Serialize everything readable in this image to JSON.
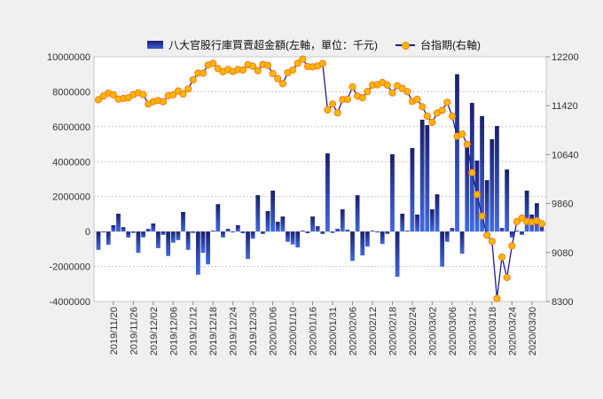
{
  "chart_data": {
    "type": "bar+line",
    "legend": {
      "bar_label": "八大官股行庫買賣超金額(左軸，單位：千元)",
      "line_label": "台指期(右軸)",
      "placement": "top-center"
    },
    "left_axis": {
      "min": -4000000,
      "max": 10000000,
      "step": 2000000,
      "tick_labels": [
        "10000000",
        "8000000",
        "6000000",
        "4000000",
        "2000000",
        "0",
        "-2000000",
        "-4000000"
      ]
    },
    "right_axis": {
      "min": 8300,
      "max": 12200,
      "step": 780,
      "tick_labels": [
        "12200",
        "11420",
        "10640",
        "9860",
        "9080",
        "8300"
      ]
    },
    "x_tick_start_index": 3,
    "x_tick_step": 4,
    "x_tick_labels": [
      "2019/11/20",
      "2019/11/26",
      "2019/12/02",
      "2019/12/06",
      "2019/12/12",
      "2019/12/18",
      "2019/12/24",
      "2019/12/30",
      "2020/01/06",
      "2020/01/10",
      "2020/01/16",
      "2020/01/31",
      "2020/02/06",
      "2020/02/12",
      "2020/02/18",
      "2020/02/24",
      "2020/03/02",
      "2020/03/06",
      "2020/03/12",
      "2020/03/18",
      "2020/03/24",
      "2020/03/30"
    ],
    "grid": true,
    "series": [
      {
        "name": "八大官股行庫買賣超金額",
        "type": "bar",
        "axis": "left",
        "values": [
          -1050000,
          -50000,
          -760000,
          360000,
          1020000,
          250000,
          -340000,
          -80000,
          -1220000,
          -340000,
          150000,
          460000,
          -950000,
          -190000,
          -1400000,
          -640000,
          -490000,
          1120000,
          -1050000,
          -80000,
          -2470000,
          -1220000,
          -1880000,
          50000,
          1570000,
          -340000,
          150000,
          -50000,
          360000,
          -100000,
          -1570000,
          -410000,
          2080000,
          -140000,
          1170000,
          2340000,
          560000,
          860000,
          -590000,
          -740000,
          -910000,
          50000,
          -100000,
          860000,
          300000,
          -140000,
          4470000,
          -80000,
          150000,
          1270000,
          100000,
          -1680000,
          2080000,
          -1370000,
          -860000,
          50000,
          -30000,
          -710000,
          -140000,
          4420000,
          -2590000,
          1020000,
          50000,
          4780000,
          970000,
          6400000,
          6090000,
          1270000,
          2130000,
          -2010000,
          -590000,
          200000,
          9000000,
          -1270000,
          4960000,
          7360000,
          4060000,
          6600000,
          2940000,
          5280000,
          6040000,
          200000,
          3550000,
          -340000,
          50000,
          -190000,
          2340000,
          970000,
          1620000,
          250000
        ]
      },
      {
        "name": "台指期",
        "type": "line",
        "axis": "right",
        "values": [
          11515,
          11574,
          11621,
          11592,
          11526,
          11536,
          11546,
          11597,
          11625,
          11597,
          11447,
          11484,
          11503,
          11484,
          11578,
          11592,
          11654,
          11606,
          11687,
          11832,
          11939,
          11939,
          12068,
          12096,
          12011,
          11960,
          11997,
          11964,
          11997,
          11988,
          12073,
          12049,
          11978,
          12077,
          12063,
          11931,
          11851,
          11771,
          11945,
          11988,
          12096,
          12162,
          12044,
          12040,
          12054,
          12092,
          11352,
          11447,
          11305,
          11517,
          11522,
          11719,
          11574,
          11546,
          11644,
          11748,
          11753,
          11790,
          11748,
          11625,
          11738,
          11696,
          11644,
          11489,
          11522,
          11404,
          11253,
          11154,
          11305,
          11347,
          11475,
          11253,
          10933,
          10970,
          10805,
          10353,
          10005,
          9661,
          9355,
          9257,
          8347,
          9007,
          8682,
          9186,
          9572,
          9628,
          9576,
          9567,
          9586,
          9539
        ]
      }
    ],
    "colors": {
      "bar_top": "#1a1f6e",
      "bar_bottom": "#4169e1",
      "line": "#1a1f8e",
      "marker_fill": "#f5b800",
      "marker_edge": "#ff7a1a"
    }
  }
}
